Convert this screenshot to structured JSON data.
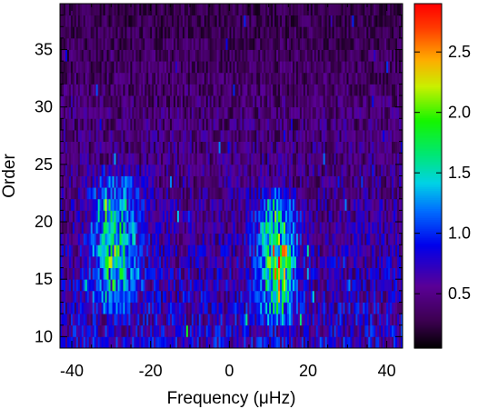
{
  "chart_data": {
    "type": "heatmap",
    "title": "",
    "xlabel": "Frequency (μHz)",
    "ylabel": "Order",
    "xlim": [
      -43,
      44
    ],
    "ylim": [
      9,
      39
    ],
    "x_ticks": [
      -40,
      -20,
      0,
      20,
      40
    ],
    "x_tick_labels": [
      "-40",
      "-20",
      "0",
      "20",
      "40"
    ],
    "y_ticks": [
      10,
      15,
      20,
      25,
      30,
      35
    ],
    "y_tick_labels": [
      "10",
      "15",
      "20",
      "25",
      "30",
      "35"
    ],
    "colorbar": {
      "range": [
        0.05,
        2.9
      ],
      "ticks": [
        0.5,
        1.0,
        1.5,
        2.0,
        2.5
      ],
      "tick_labels": [
        "0.5",
        "1.0",
        "1.5",
        "2.0",
        "2.5"
      ],
      "colormap": "rainbow (black-purple-blue-cyan-green-yellow-red)"
    },
    "orders": [
      9,
      39
    ],
    "ridges": [
      {
        "center_x": -29,
        "width": 5.5,
        "order_range": [
          12,
          24
        ],
        "peak_value": 2.1
      },
      {
        "center_x": 12,
        "width": 4.5,
        "order_range": [
          11,
          22
        ],
        "peak_value": 2.8
      }
    ],
    "background_level_low_orders": 0.7,
    "background_level_high_orders": 0.25
  }
}
